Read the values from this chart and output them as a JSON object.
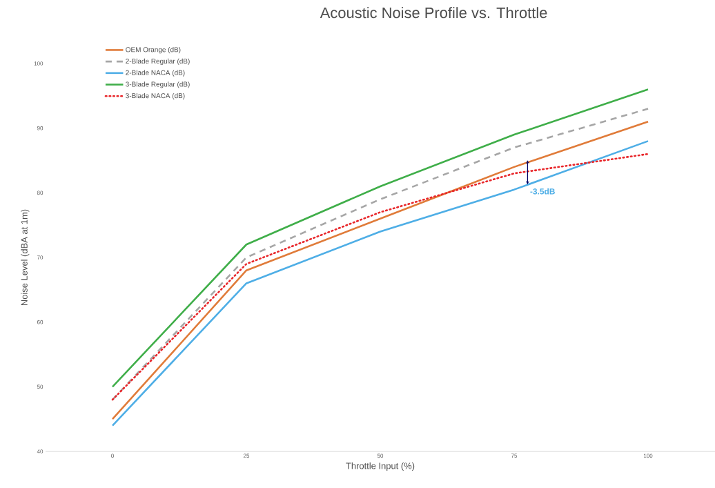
{
  "chart_data": {
    "type": "line",
    "title": "Acoustic Noise Profile vs. Throttle",
    "xlabel": "Throttle Input (%)",
    "ylabel": "Noise Level (dBA at 1m)",
    "categories": [
      "0",
      "25",
      "50",
      "75",
      "100"
    ],
    "series": [
      {
        "name": "OEM Orange (dB)",
        "color": "#e07b39",
        "values": [
          45,
          68,
          76,
          84,
          91
        ]
      },
      {
        "name": "2-Blade Regular (dB)",
        "color": "#a6a6a6",
        "line_style": "dashed",
        "values": [
          48,
          70,
          79,
          87,
          93
        ]
      },
      {
        "name": "2-Blade NACA (dB)",
        "color": "#4eaee6",
        "values": [
          44,
          66,
          74,
          80.5,
          88
        ]
      },
      {
        "name": "3-Blade Regular (dB)",
        "color": "#3fae49",
        "values": [
          50,
          72,
          81,
          89,
          96
        ]
      },
      {
        "name": "3-Blade NACA (dB)",
        "color": "#e8262a",
        "line_style": "dotted",
        "values": [
          48,
          69,
          77,
          83,
          86
        ]
      }
    ],
    "annotations": [
      {
        "text": "-3.5dB",
        "y": 83
      }
    ],
    "ylim": [
      40,
      100
    ],
    "yticks": [
      40,
      50,
      60,
      70,
      80,
      90,
      100
    ],
    "grid": false,
    "legend": "top left",
    "line_style": "solid",
    "marker": "none"
  }
}
